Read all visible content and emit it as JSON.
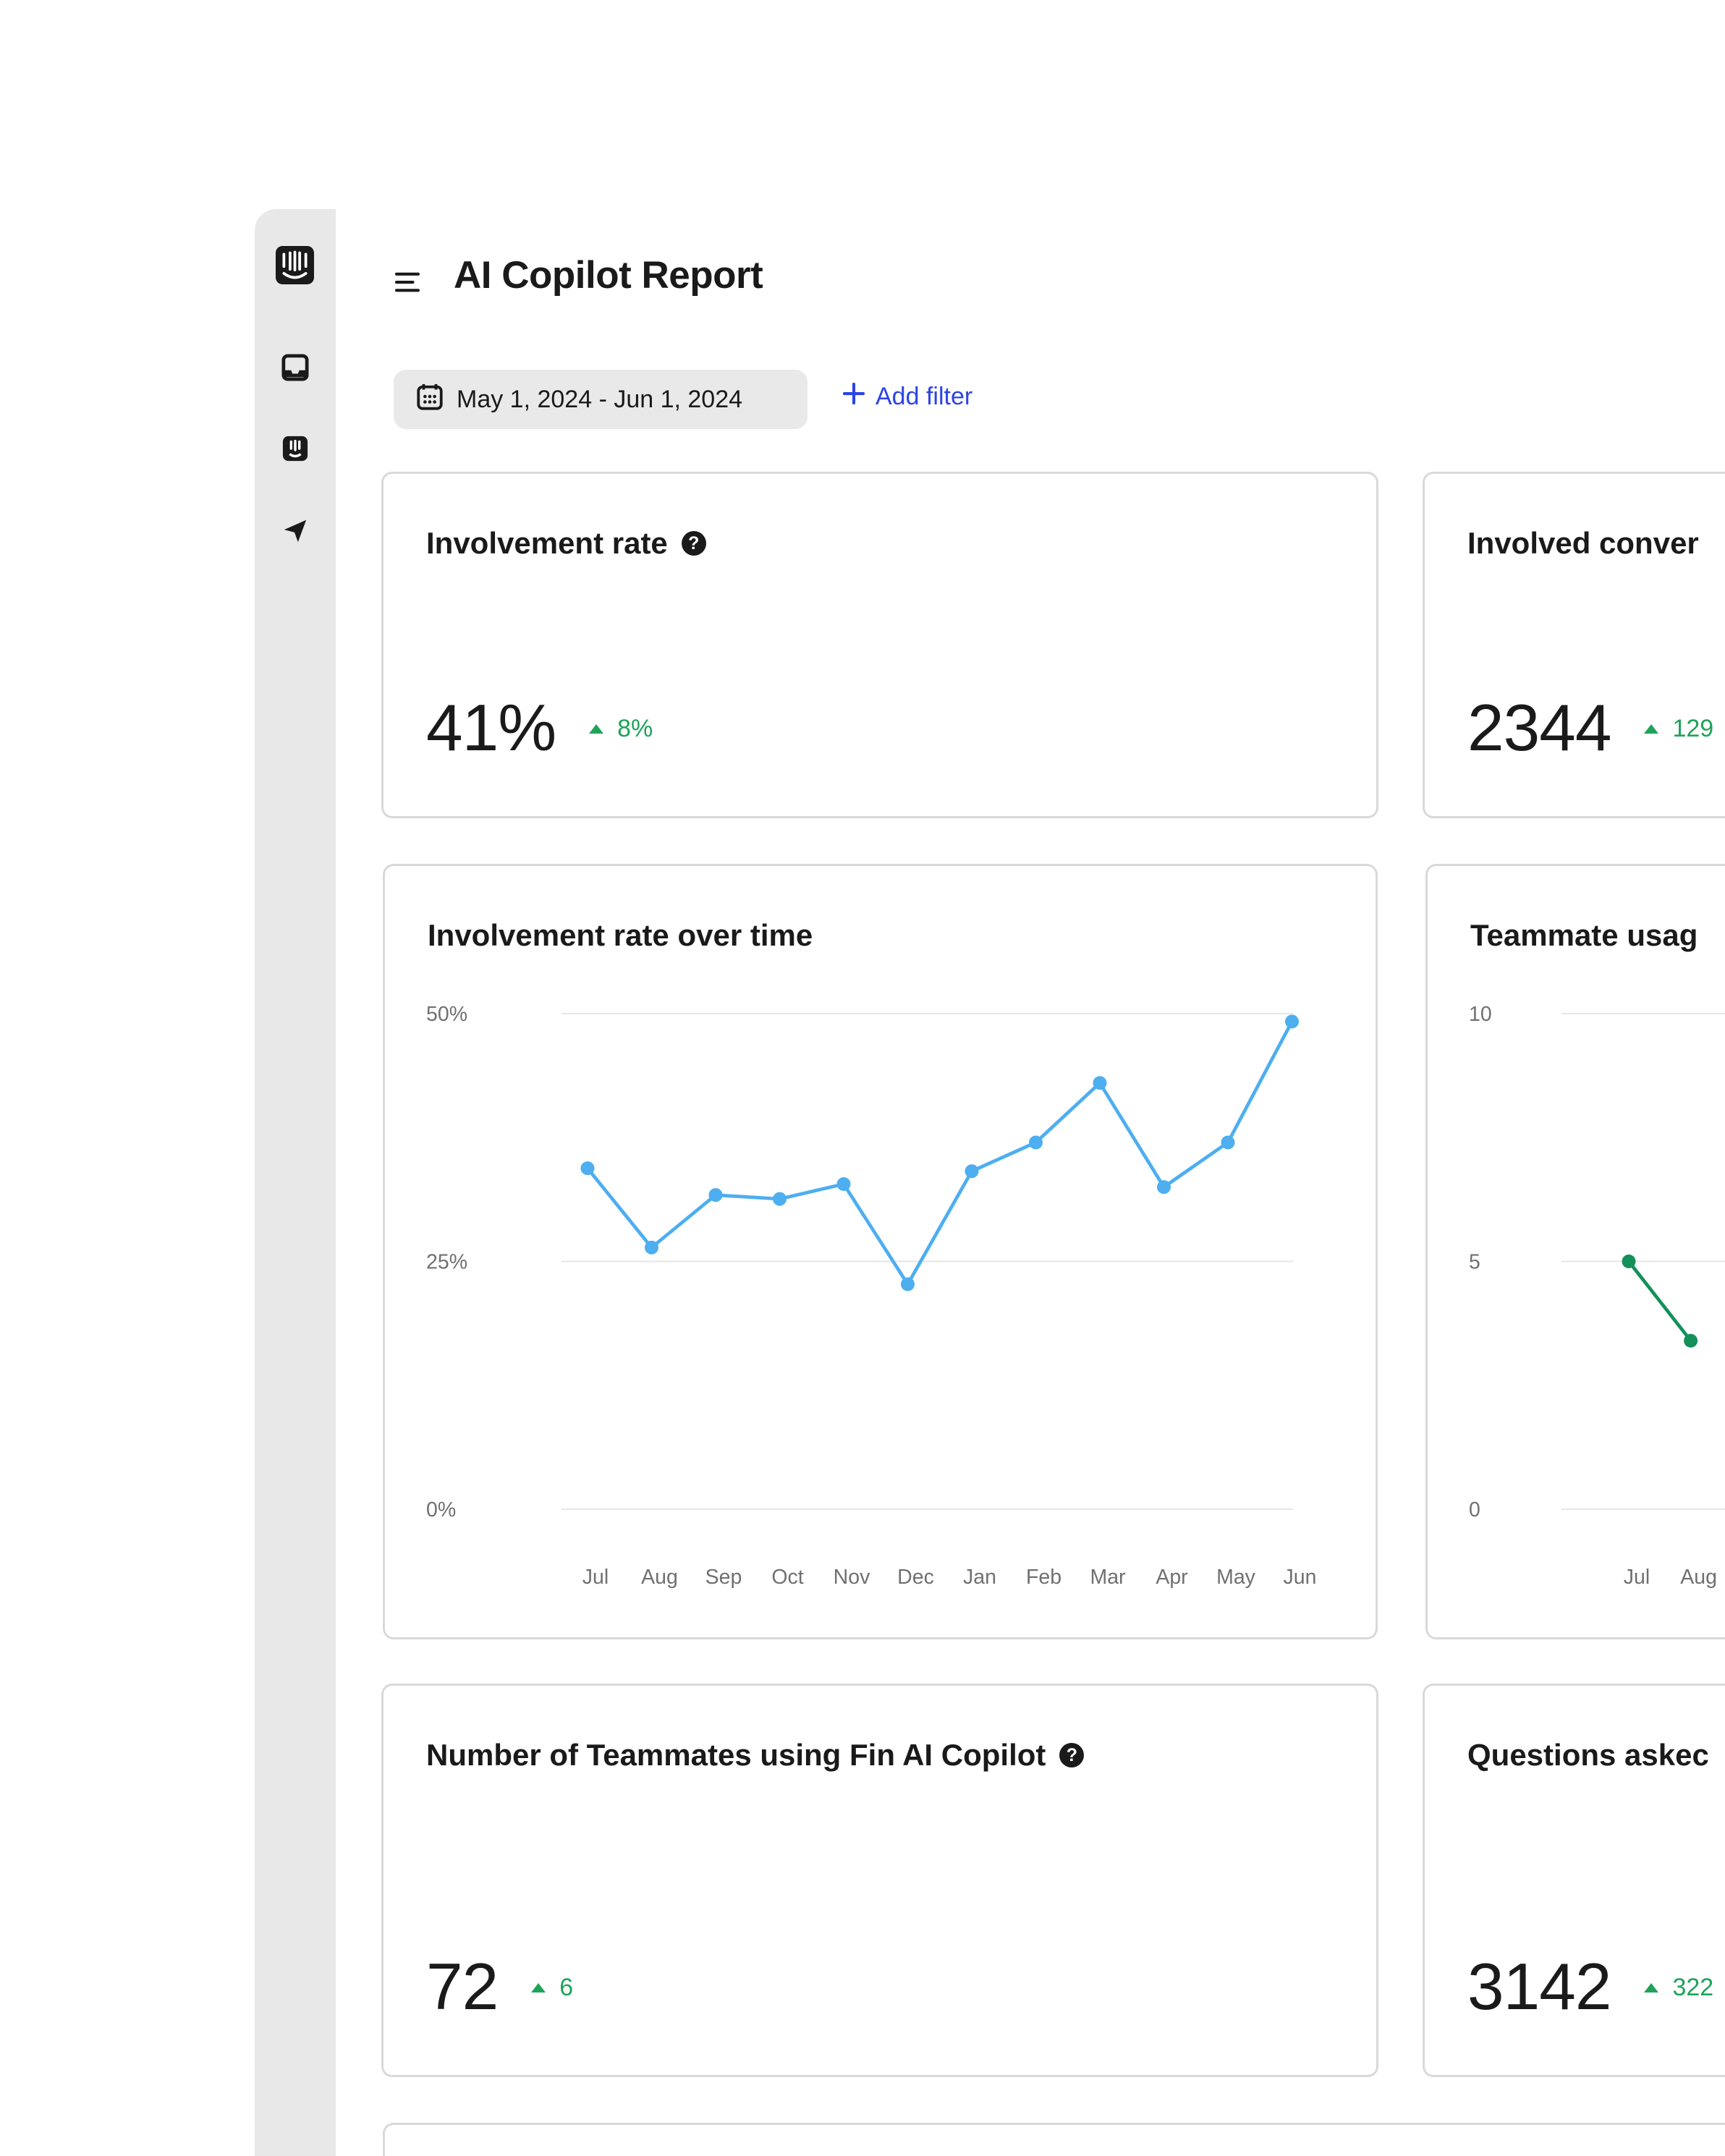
{
  "header": {
    "title": "AI Copilot Report",
    "date_range": "May 1, 2024 - Jun 1, 2024",
    "add_filter": "Add filter"
  },
  "sidebar": {
    "icons": [
      "intercom-logo-icon",
      "inbox-icon",
      "fin-copilot-icon",
      "outbound-send-icon"
    ]
  },
  "cards": {
    "involvement_rate": {
      "title": "Involvement rate",
      "value": "41%",
      "delta": "8%"
    },
    "involved_conversations": {
      "title": "Involved conver",
      "value": "2344",
      "delta": "129"
    },
    "teammates_using": {
      "title": "Number of Teammates using Fin AI Copilot",
      "value": "72",
      "delta": "6"
    },
    "questions_asked": {
      "title": "Questions askec",
      "value": "3142",
      "delta": "322"
    }
  },
  "colors": {
    "accent": "#2b44e5",
    "positive": "#1fa35a",
    "series_blue": "#4daef0",
    "series_green": "#14905a"
  },
  "chart_data": [
    {
      "type": "line",
      "title": "Involvement rate over time",
      "categories": [
        "Jul",
        "Aug",
        "Sep",
        "Oct",
        "Nov",
        "Dec",
        "Jan",
        "Feb",
        "Mar",
        "Apr",
        "May",
        "Jun"
      ],
      "values": [
        34.4,
        26.4,
        31.7,
        31.3,
        32.8,
        22.7,
        34.1,
        37.0,
        43.0,
        32.5,
        37.0,
        49.2
      ],
      "yticks": [
        "50%",
        "25%",
        "0%"
      ],
      "ylim": [
        0,
        50
      ],
      "grid": true
    },
    {
      "type": "line",
      "title": "Teammate usag",
      "categories": [
        "Jul",
        "Aug"
      ],
      "values": [
        5.0,
        3.4
      ],
      "yticks": [
        "10",
        "5",
        "0"
      ],
      "ylim": [
        0,
        10
      ],
      "grid": true
    }
  ]
}
